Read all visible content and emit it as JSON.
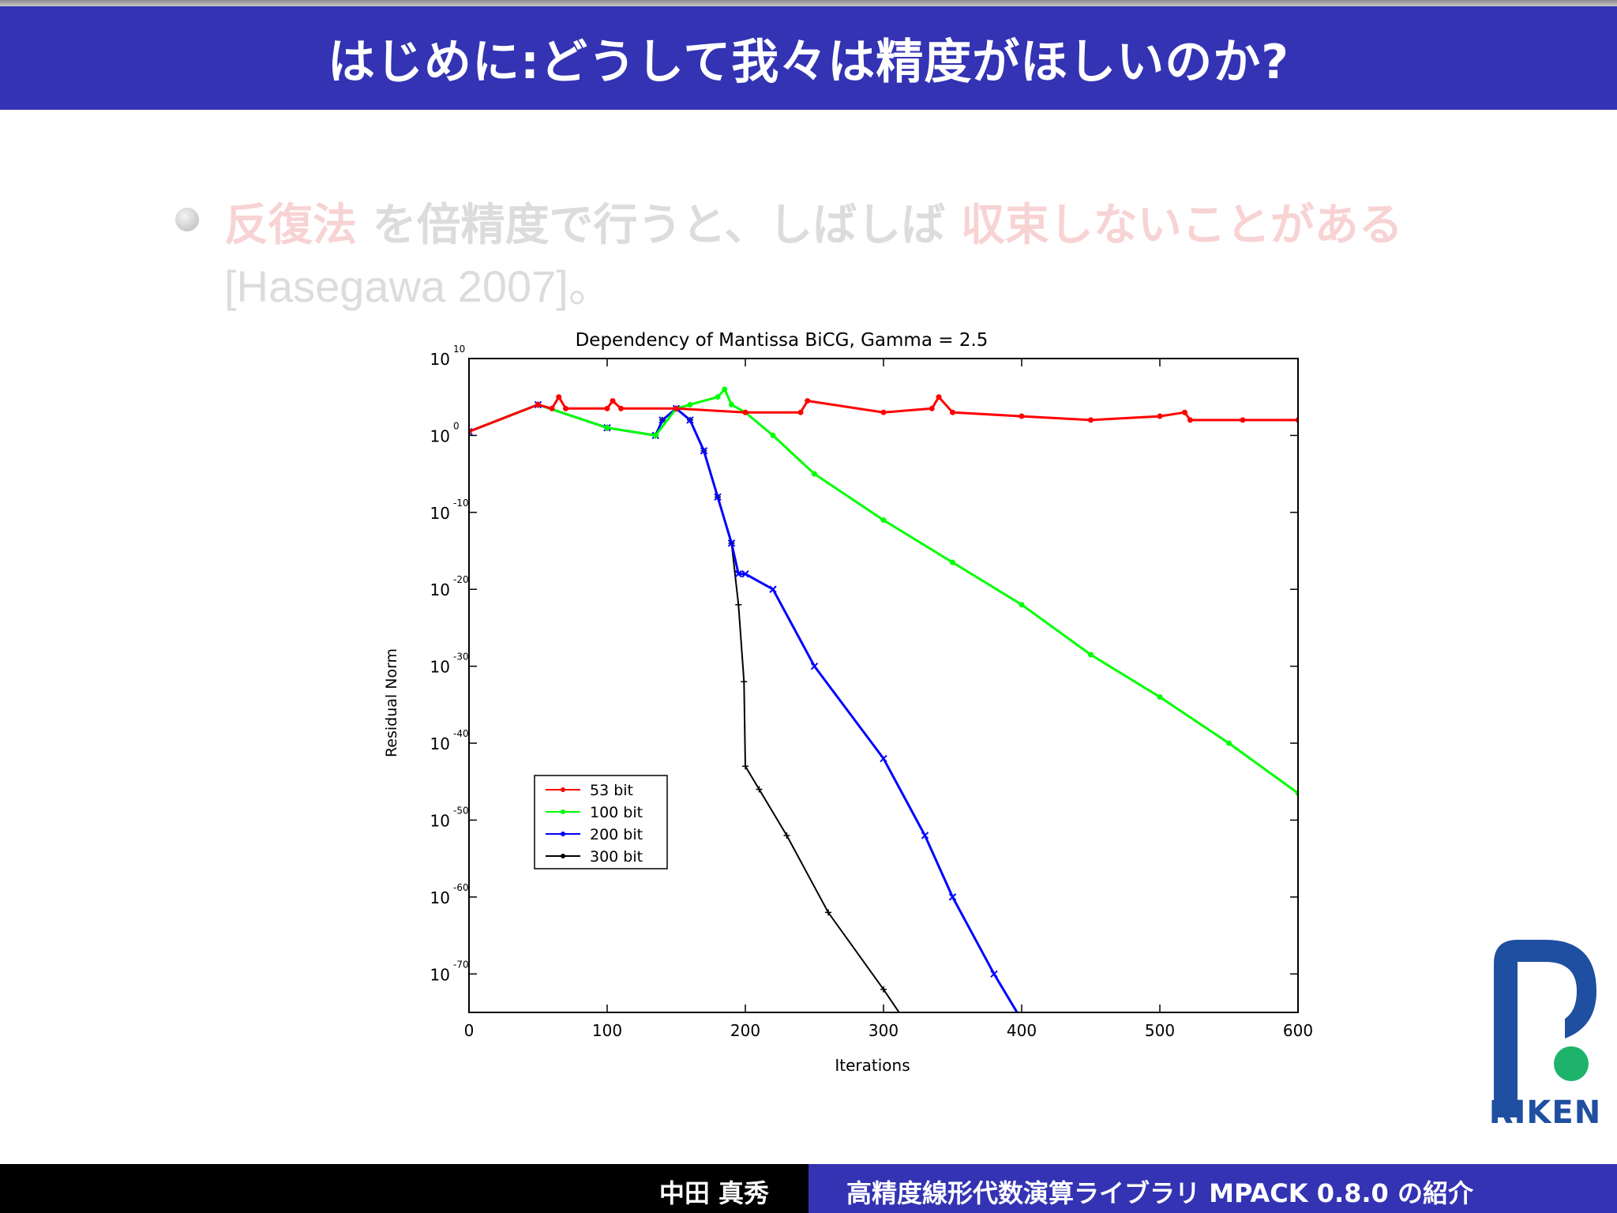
{
  "slide": {
    "title": "はじめに:どうして我々は精度がほしいのか?",
    "bullet": {
      "term_iterative": "反復法",
      "text_mid": " を倍精度で行うと、しばしば ",
      "term_nonconvergence": "収束しないことがある",
      "citation": "[Hasegawa 2007]。"
    }
  },
  "footer": {
    "author": "中田 真秀",
    "talk_title": "高精度線形代数演算ライブラリ MPACK 0.8.0 の紹介"
  },
  "logo": {
    "text": "RIKEN"
  },
  "colors": {
    "title_bar": "#3333b3",
    "footer_left": "#000000",
    "footer_right": "#3333b3",
    "logo_blue": "#1f4fa0",
    "logo_green": "#1db36a"
  },
  "chart_data": {
    "type": "line",
    "title": "Dependency of Mantissa   BiCG,  Gamma = 2.5",
    "xlabel": "Iterations",
    "ylabel": "Residual Norm",
    "xlim": [
      0,
      600
    ],
    "ylim_exponent": [
      -75,
      10
    ],
    "y_scale": "log",
    "x_ticks": [
      "0",
      "100",
      "200",
      "300",
      "400",
      "500",
      "600"
    ],
    "y_tick_exponents": [
      "10",
      "0",
      "-10",
      "-20",
      "-30",
      "-40",
      "-50",
      "-60",
      "-70"
    ],
    "y_tick_base": "10",
    "legend_position": "lower-left",
    "series": [
      {
        "name": "53 bit",
        "color": "#ff0000",
        "marker": "dot",
        "x": [
          0,
          50,
          60,
          65,
          70,
          100,
          104,
          110,
          150,
          200,
          240,
          245,
          300,
          335,
          340,
          350,
          400,
          450,
          500,
          518,
          522,
          560,
          600
        ],
        "log10_y": [
          0.5,
          4,
          3.5,
          5,
          3.5,
          3.5,
          4.5,
          3.5,
          3.5,
          3,
          3,
          4.5,
          3,
          3.5,
          5,
          3,
          2.5,
          2,
          2.5,
          3,
          2,
          2,
          2
        ]
      },
      {
        "name": "100 bit",
        "color": "#00ff00",
        "marker": "dot",
        "x": [
          0,
          50,
          100,
          135,
          150,
          160,
          180,
          185,
          190,
          200,
          220,
          250,
          300,
          350,
          400,
          450,
          500,
          550,
          600
        ],
        "log10_y": [
          0.5,
          4,
          1,
          0,
          3.5,
          4,
          5,
          6,
          4,
          3,
          0,
          -5,
          -11,
          -16.5,
          -22,
          -28.5,
          -34,
          -40,
          -46.5
        ]
      },
      {
        "name": "200 bit",
        "color": "#0000ff",
        "marker": "x",
        "x": [
          0,
          50,
          100,
          135,
          140,
          150,
          160,
          170,
          180,
          190,
          195,
          200,
          220,
          250,
          300,
          330,
          350,
          380,
          400,
          410
        ],
        "log10_y": [
          0.5,
          4,
          1,
          0,
          2,
          3.5,
          2,
          -2,
          -8,
          -14,
          -18,
          -18,
          -20,
          -30,
          -42,
          -52,
          -60,
          -70,
          -76,
          -79
        ]
      },
      {
        "name": "300 bit",
        "color": "#000000",
        "marker": "plus",
        "x": [
          0,
          50,
          100,
          135,
          140,
          150,
          160,
          170,
          180,
          190,
          195,
          199,
          200,
          210,
          230,
          260,
          300,
          315,
          320
        ],
        "log10_y": [
          0.5,
          4,
          1,
          0,
          2,
          3.5,
          2,
          -2,
          -8,
          -14,
          -22,
          -32,
          -43,
          -46,
          -52,
          -62,
          -72,
          -76,
          -78
        ]
      }
    ]
  }
}
